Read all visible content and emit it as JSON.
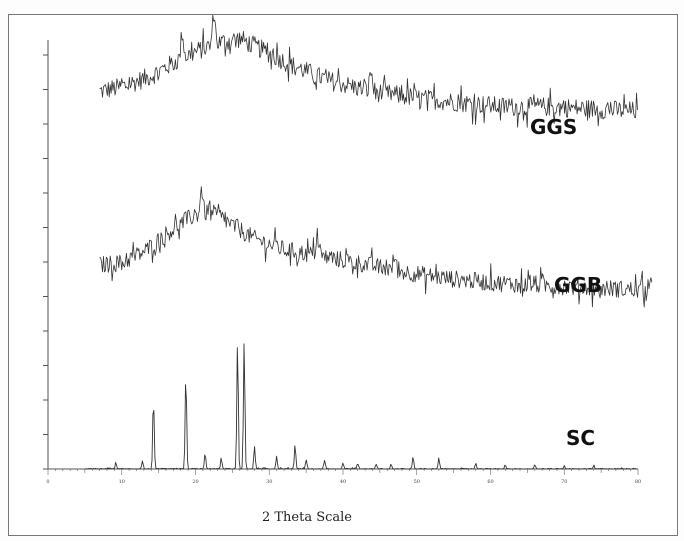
{
  "chart_data": {
    "type": "line",
    "title": "",
    "xlabel": "2 Theta Scale",
    "ylabel": "",
    "xlim": [
      0,
      80
    ],
    "x_ticks": [
      "0",
      "10",
      "20",
      "30",
      "40",
      "50",
      "60",
      "70",
      "80"
    ],
    "grid": false,
    "legend": "none",
    "series": [
      {
        "name": "GGS",
        "x_range": [
          7,
          80
        ],
        "profile_x": [
          7,
          10,
          14,
          17,
          20,
          23,
          26,
          29,
          33,
          38,
          44,
          50,
          56,
          62,
          68,
          74,
          80
        ],
        "profile_y": [
          2.9,
          3.0,
          3.25,
          3.55,
          3.8,
          4.0,
          4.1,
          3.85,
          3.5,
          3.15,
          2.9,
          2.75,
          2.65,
          2.55,
          2.55,
          2.5,
          2.45
        ],
        "noise": 0.22,
        "peaks": [
          {
            "x": 22.5,
            "h": 0.75
          },
          {
            "x": 18.2,
            "h": 0.6
          },
          {
            "x": 43.8,
            "h": 0.45
          }
        ]
      },
      {
        "name": "GGB",
        "x_range": [
          7,
          82
        ],
        "profile_x": [
          7,
          10,
          13,
          16,
          19,
          21,
          23,
          25,
          28,
          32,
          37,
          42,
          48,
          54,
          60,
          66,
          72,
          78,
          82
        ],
        "profile_y": [
          1.0,
          1.05,
          1.3,
          1.7,
          2.05,
          2.2,
          2.15,
          1.9,
          1.6,
          1.35,
          1.2,
          1.05,
          0.85,
          0.7,
          0.6,
          0.55,
          0.5,
          0.45,
          0.42
        ],
        "noise": 0.2,
        "peaks": [
          {
            "x": 20.8,
            "h": 0.55
          },
          {
            "x": 36.5,
            "h": 0.45
          },
          {
            "x": 47.0,
            "h": 0.35
          }
        ]
      },
      {
        "name": "SC",
        "x_range": [
          5,
          80
        ],
        "baseline": 0.0,
        "noise": 0.015,
        "peaks": [
          {
            "x": 9.2,
            "h": 0.15
          },
          {
            "x": 12.8,
            "h": 0.18
          },
          {
            "x": 14.3,
            "h": 1.6
          },
          {
            "x": 18.7,
            "h": 2.15
          },
          {
            "x": 21.3,
            "h": 0.35
          },
          {
            "x": 23.5,
            "h": 0.25
          },
          {
            "x": 25.7,
            "h": 2.9
          },
          {
            "x": 26.6,
            "h": 2.9
          },
          {
            "x": 28.0,
            "h": 0.5
          },
          {
            "x": 31.0,
            "h": 0.3
          },
          {
            "x": 33.5,
            "h": 0.55
          },
          {
            "x": 35.0,
            "h": 0.2
          },
          {
            "x": 37.5,
            "h": 0.2
          },
          {
            "x": 40.0,
            "h": 0.15
          },
          {
            "x": 42.0,
            "h": 0.15
          },
          {
            "x": 44.5,
            "h": 0.12
          },
          {
            "x": 46.5,
            "h": 0.12
          },
          {
            "x": 49.5,
            "h": 0.28
          },
          {
            "x": 53.0,
            "h": 0.25
          },
          {
            "x": 58.0,
            "h": 0.12
          },
          {
            "x": 62.0,
            "h": 0.1
          },
          {
            "x": 66.0,
            "h": 0.1
          },
          {
            "x": 70.0,
            "h": 0.08
          },
          {
            "x": 74.0,
            "h": 0.08
          }
        ]
      }
    ]
  }
}
